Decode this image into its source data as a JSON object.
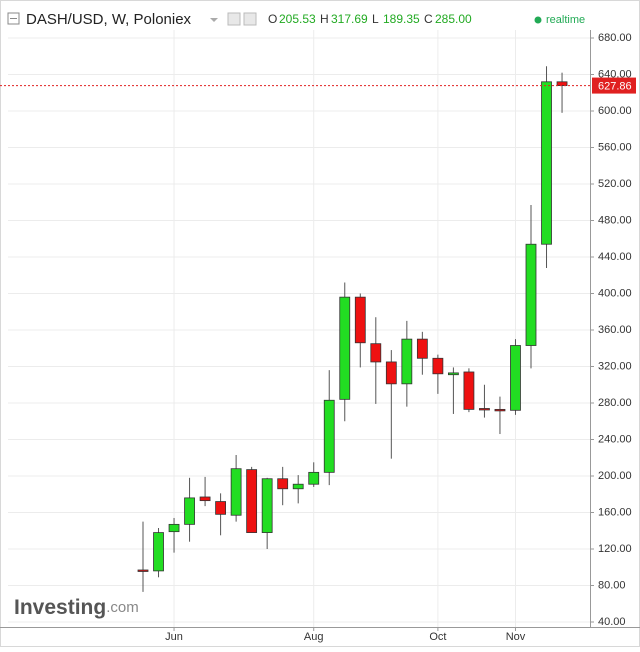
{
  "header": {
    "symbol": "DASH/USD, W, Poloniex",
    "ohlc_labels": [
      "O",
      "H",
      "L",
      "C"
    ],
    "ohlc_values": [
      "205.53",
      "317.69",
      "189.35",
      "285.00"
    ],
    "status": "realtime"
  },
  "logo": {
    "name": "Investing",
    "suffix": ".com"
  },
  "chart_data": {
    "type": "candlestick",
    "categories": [
      null,
      null,
      "Jun",
      null,
      null,
      null,
      null,
      null,
      null,
      null,
      null,
      "Aug",
      null,
      null,
      null,
      null,
      null,
      null,
      null,
      "Oct",
      null,
      null,
      null,
      null,
      "Nov",
      null,
      null,
      null
    ],
    "series": [
      {
        "name": "open",
        "values": [
          97,
          96,
          139,
          147,
          177,
          172,
          157,
          207,
          138,
          197,
          186,
          191,
          204,
          284,
          396,
          345,
          325,
          301,
          350,
          329,
          311,
          314,
          274,
          273,
          272,
          343,
          454,
          632
        ]
      },
      {
        "name": "high",
        "values": [
          150,
          143,
          154,
          198,
          199,
          181,
          223,
          210,
          198,
          210,
          201,
          215,
          316,
          412,
          400,
          374,
          338,
          370,
          358,
          333,
          319,
          318,
          300,
          287,
          350,
          497,
          649,
          642
        ]
      },
      {
        "name": "low",
        "values": [
          73,
          89,
          116,
          128,
          167,
          135,
          150,
          138,
          120,
          168,
          170,
          188,
          190,
          260,
          319,
          279,
          219,
          276,
          311,
          290,
          268,
          270,
          264,
          246,
          267,
          318,
          428,
          598
        ]
      },
      {
        "name": "close",
        "values": [
          96,
          138,
          147,
          176,
          173,
          158,
          208,
          138,
          197,
          186,
          191,
          204,
          283,
          396,
          346,
          325,
          301,
          350,
          329,
          312,
          313,
          273,
          273,
          272,
          343,
          454,
          632,
          627.86
        ]
      }
    ],
    "up_color": "#22dd22",
    "down_color": "#ee1111",
    "last_price": 627.86,
    "last_price_color": "#e02020",
    "ylim": [
      40,
      680
    ],
    "yticks": [
      {
        "value": 40,
        "label": "40.00"
      },
      {
        "value": 80,
        "label": "80.00"
      },
      {
        "value": 120,
        "label": "120.00"
      },
      {
        "value": 160,
        "label": "160.00"
      },
      {
        "value": 200,
        "label": "200.00"
      },
      {
        "value": 240,
        "label": "240.00"
      },
      {
        "value": 280,
        "label": "280.00"
      },
      {
        "value": 320,
        "label": "320.00"
      },
      {
        "value": 360,
        "label": "360.00"
      },
      {
        "value": 400,
        "label": "400.00"
      },
      {
        "value": 440,
        "label": "440.00"
      },
      {
        "value": 480,
        "label": "480.00"
      },
      {
        "value": 520,
        "label": "520.00"
      },
      {
        "value": 560,
        "label": "560.00"
      },
      {
        "value": 600,
        "label": "600.00"
      },
      {
        "value": 640,
        "label": "640.00"
      },
      {
        "value": 680,
        "label": "680.00"
      }
    ],
    "grid": true
  }
}
